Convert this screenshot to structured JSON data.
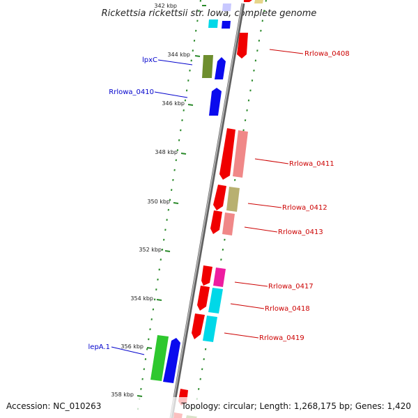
{
  "title": "Rickettsia rickettsii str. Iowa, complete genome",
  "footer": {
    "accession": "Accession: NC_010263",
    "summary": "Topology: circular; Length: 1,268,175 bp; Genes: 1,420"
  },
  "colors": {
    "backbone": "#8a8a8a",
    "tick": "#2a8a2a",
    "label_plus": "#0000cc",
    "label_minus": "#cc0000"
  },
  "ticks": [
    {
      "label": "342 kbp"
    },
    {
      "label": "344 kbp"
    },
    {
      "label": "346 kbp"
    },
    {
      "label": "348 kbp"
    },
    {
      "label": "350 kbp"
    },
    {
      "label": "352 kbp"
    },
    {
      "label": "354 kbp"
    },
    {
      "label": "356 kbp"
    },
    {
      "label": "358 kbp"
    }
  ],
  "genes": [
    {
      "label": "lpxC",
      "strand": "+",
      "color": "#0000cc"
    },
    {
      "label": "Rrlowa_0410",
      "strand": "+",
      "color": "#0000cc"
    },
    {
      "label": "Rrlowa_0408",
      "strand": "-",
      "color": "#cc0000"
    },
    {
      "label": "Rrlowa_0411",
      "strand": "-",
      "color": "#cc0000"
    },
    {
      "label": "Rrlowa_0412",
      "strand": "-",
      "color": "#cc0000"
    },
    {
      "label": "Rrlowa_0413",
      "strand": "-",
      "color": "#cc0000"
    },
    {
      "label": "Rrlowa_0417",
      "strand": "-",
      "color": "#cc0000"
    },
    {
      "label": "Rrlowa_0418",
      "strand": "-",
      "color": "#cc0000"
    },
    {
      "label": "Rrlowa_0419",
      "strand": "-",
      "color": "#cc0000"
    },
    {
      "label": "lepA.1",
      "strand": "+",
      "color": "#0000cc"
    }
  ]
}
